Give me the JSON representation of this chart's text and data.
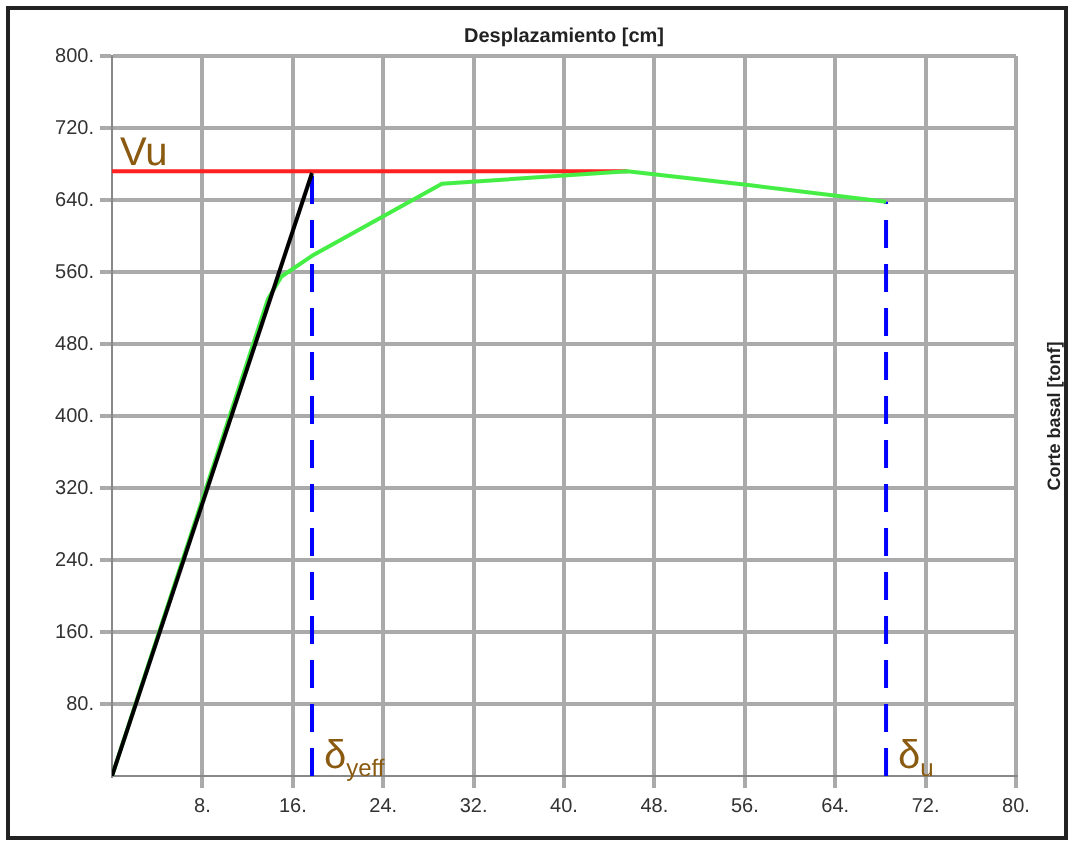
{
  "chart_data": {
    "type": "line",
    "title": "Desplazamiento [cm]",
    "ylabel": "Corte basal [tonf]",
    "xlim": [
      0,
      80
    ],
    "xticks": [
      {
        "value": 8,
        "label": "8."
      },
      {
        "value": 16,
        "label": "16."
      },
      {
        "value": 24,
        "label": "24."
      },
      {
        "value": 32,
        "label": "32."
      },
      {
        "value": 40,
        "label": "40."
      },
      {
        "value": 48,
        "label": "48."
      },
      {
        "value": 56,
        "label": "56."
      },
      {
        "value": 64,
        "label": "64."
      },
      {
        "value": 72,
        "label": "72."
      },
      {
        "value": 80,
        "label": "80."
      }
    ],
    "ylim": [
      0,
      800
    ],
    "yticks": [
      {
        "value": 80,
        "label": "80."
      },
      {
        "value": 160,
        "label": "160."
      },
      {
        "value": 240,
        "label": "240."
      },
      {
        "value": 320,
        "label": "320."
      },
      {
        "value": 400,
        "label": "400."
      },
      {
        "value": 480,
        "label": "480."
      },
      {
        "value": 560,
        "label": "560."
      },
      {
        "value": 640,
        "label": "640."
      },
      {
        "value": 720,
        "label": "720."
      },
      {
        "value": 800,
        "label": "800."
      }
    ],
    "grid": true,
    "marker": "none",
    "line_style": "solid",
    "series": [
      {
        "color": "#000000",
        "x": [
          0,
          17.7
        ],
        "values": [
          0,
          670
        ]
      },
      {
        "color": "#44ee44",
        "x": [
          0,
          13.8,
          15,
          17.7,
          29.2,
          45.6,
          56.7,
          68.5
        ],
        "values": [
          0,
          530,
          555,
          578,
          658,
          672,
          656,
          638
        ]
      },
      {
        "name": "Vu",
        "color": "#ff2020",
        "x": [
          0,
          45.6
        ],
        "values": [
          672,
          672
        ]
      },
      {
        "name": "δ$_{yeff}$",
        "color": "#0000ff",
        "line_style": "dashed",
        "x": [
          17.7,
          17.7
        ],
        "values": [
          0,
          670
        ]
      },
      {
        "name": "δ$_{u}$",
        "color": "#0000ff",
        "line_style": "dashed",
        "x": [
          68.5,
          68.5
        ],
        "values": [
          0,
          638
        ]
      }
    ]
  }
}
